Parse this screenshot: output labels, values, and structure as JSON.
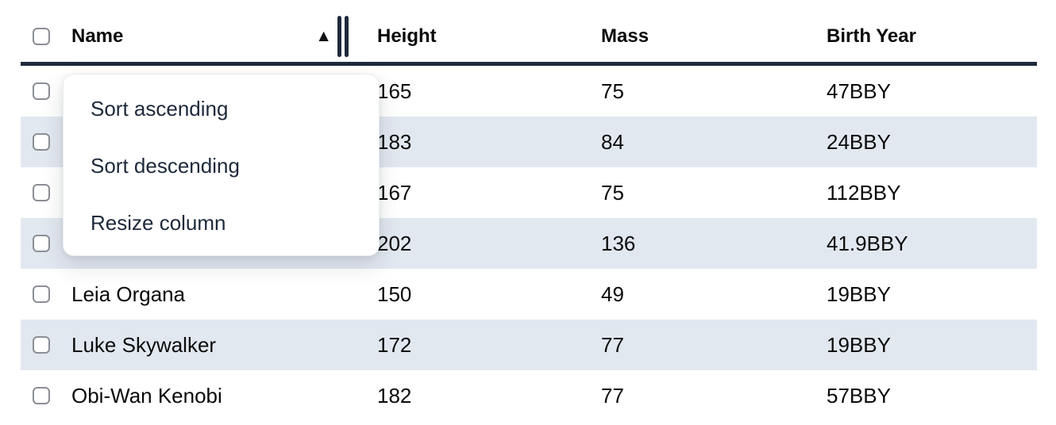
{
  "table": {
    "header": {
      "select_all_checked": false,
      "columns": [
        {
          "label": "Name",
          "sorted": "ascending"
        },
        {
          "label": "Height"
        },
        {
          "label": "Mass"
        },
        {
          "label": "Birth Year"
        }
      ]
    },
    "rows": [
      {
        "checked": false,
        "name": "",
        "height": "165",
        "mass": "75",
        "birth_year": "47BBY"
      },
      {
        "checked": false,
        "name": "",
        "height": "183",
        "mass": "84",
        "birth_year": "24BBY"
      },
      {
        "checked": false,
        "name": "",
        "height": "167",
        "mass": "75",
        "birth_year": "112BBY"
      },
      {
        "checked": false,
        "name": "",
        "height": "202",
        "mass": "136",
        "birth_year": "41.9BBY"
      },
      {
        "checked": false,
        "name": "Leia Organa",
        "height": "150",
        "mass": "49",
        "birth_year": "19BBY"
      },
      {
        "checked": false,
        "name": "Luke Skywalker",
        "height": "172",
        "mass": "77",
        "birth_year": "19BBY"
      },
      {
        "checked": false,
        "name": "Obi-Wan Kenobi",
        "height": "182",
        "mass": "77",
        "birth_year": "57BBY"
      }
    ]
  },
  "icons": {
    "sort_ascending": "▲"
  },
  "context_menu": {
    "items": [
      {
        "label": "Sort ascending"
      },
      {
        "label": "Sort descending"
      },
      {
        "label": "Resize column"
      }
    ]
  },
  "colors": {
    "row_stripe": "#e2e8f0",
    "header_underline": "#1e293b",
    "menu_text": "#1e293b",
    "body_text": "#0a0a0a",
    "checkbox_border": "#8b8e95"
  }
}
